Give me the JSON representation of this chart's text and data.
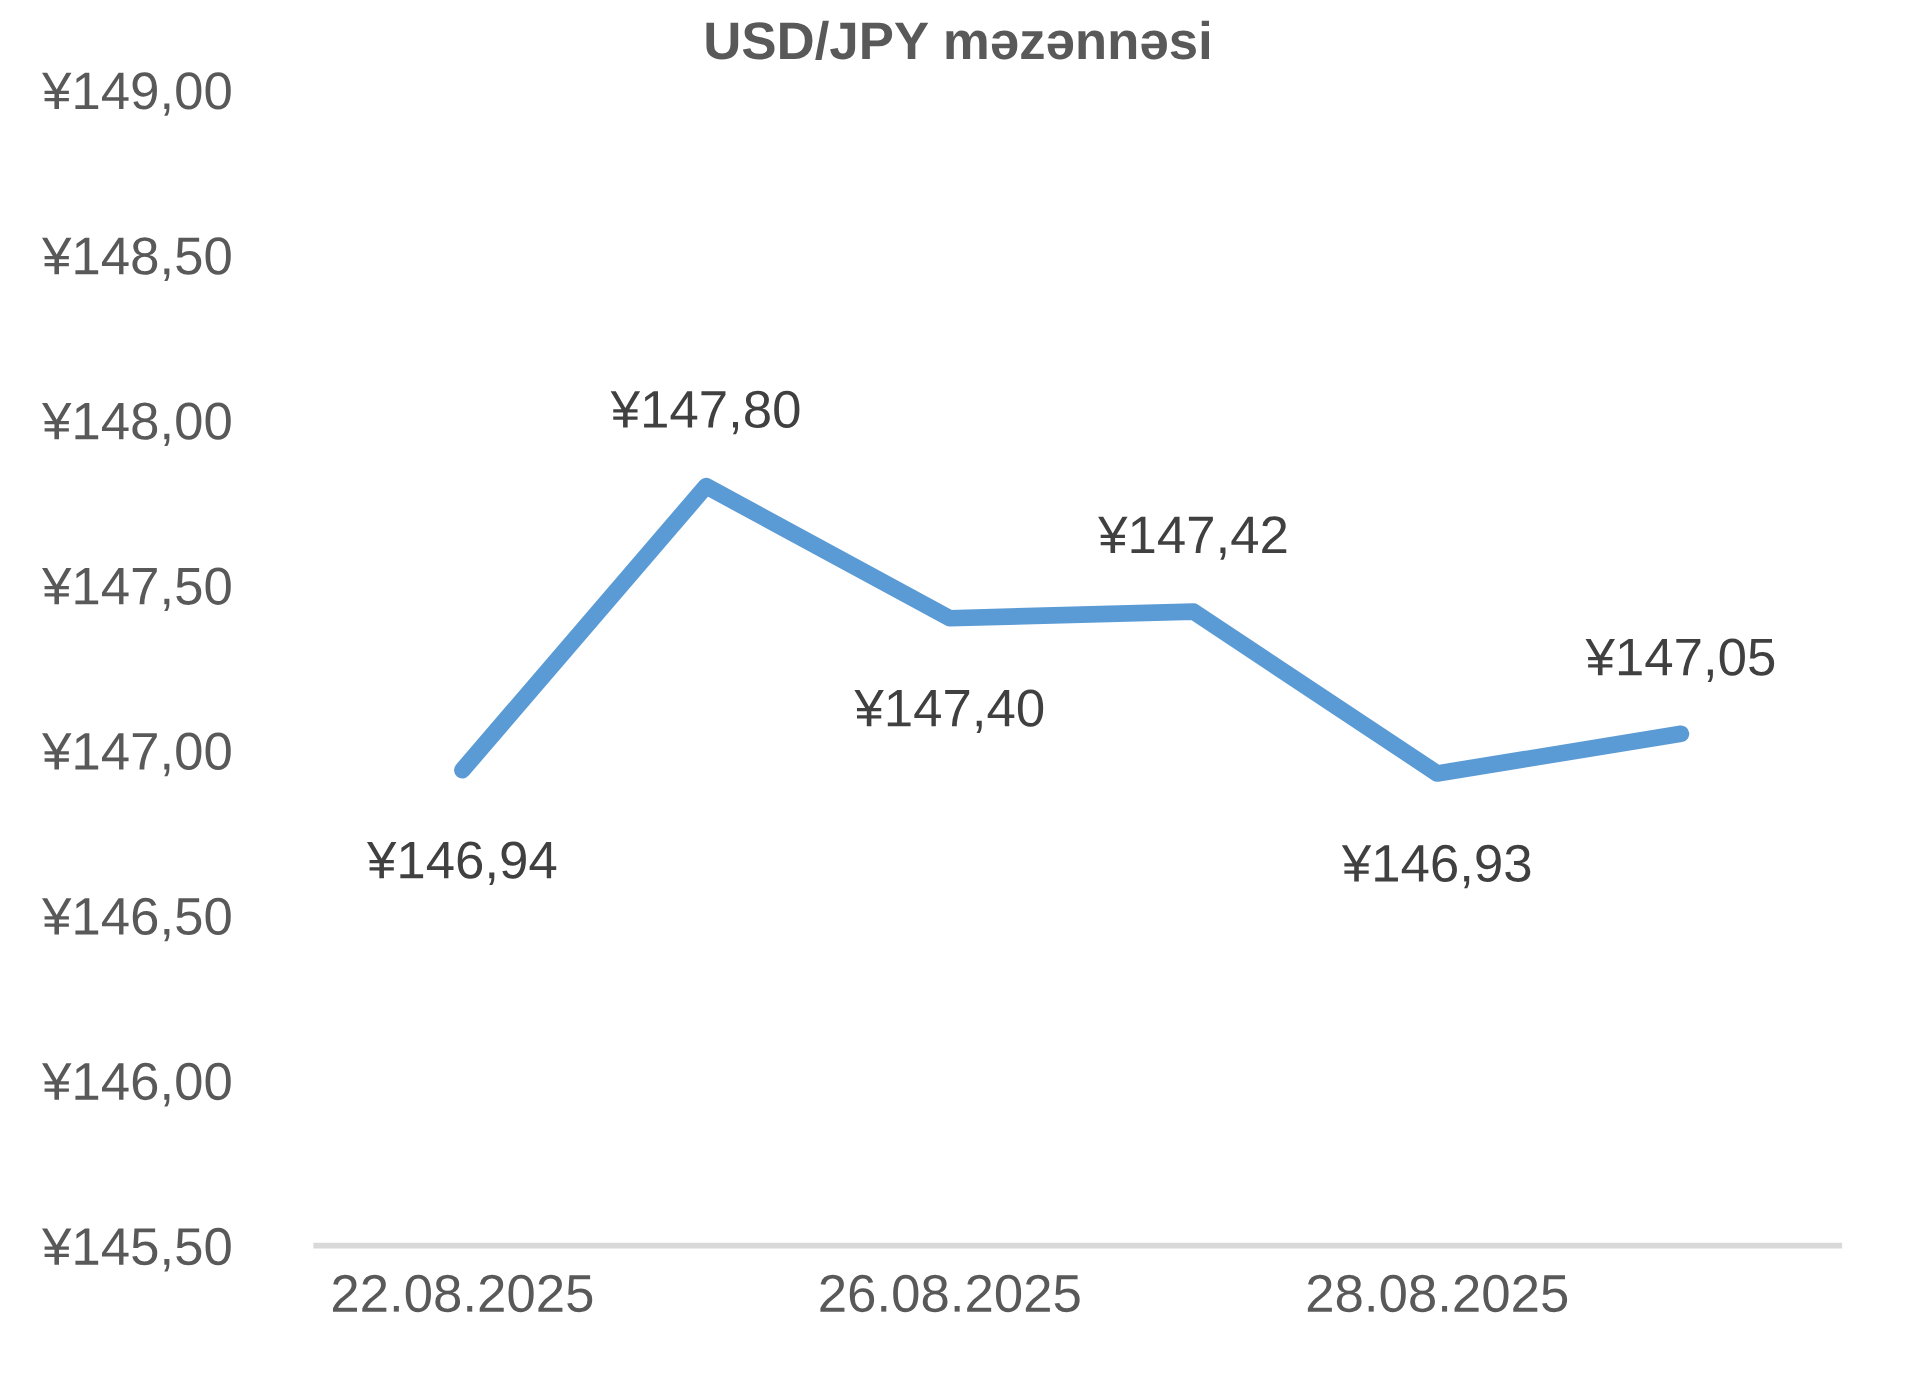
{
  "chart_data": {
    "type": "line",
    "title": "USD/JPY məzənnəsi",
    "categories": [
      "22.08.2025",
      null,
      "26.08.2025",
      null,
      "28.08.2025",
      null
    ],
    "series": [
      {
        "color": "#5b9bd5",
        "values": [
          146.94,
          147.8,
          147.4,
          147.42,
          146.93,
          147.05
        ],
        "value_labels": [
          "¥146,94",
          "¥147,80",
          "¥147,40",
          "¥147,42",
          "¥146,93",
          "¥147,05"
        ]
      }
    ],
    "ylim": [
      145.5,
      149.0
    ],
    "yticks": [
      {
        "value": 145.5,
        "label": "¥145,50"
      },
      {
        "value": 146.0,
        "label": "¥146,00"
      },
      {
        "value": 146.5,
        "label": "¥146,50"
      },
      {
        "value": 147.0,
        "label": "¥147,00"
      },
      {
        "value": 147.5,
        "label": "¥147,50"
      },
      {
        "value": 148.0,
        "label": "¥148,00"
      },
      {
        "value": 148.5,
        "label": "¥148,50"
      },
      {
        "value": 149.0,
        "label": "¥149,00"
      }
    ],
    "grid": false,
    "legend": false,
    "marker": "none",
    "line_style": "solid"
  }
}
